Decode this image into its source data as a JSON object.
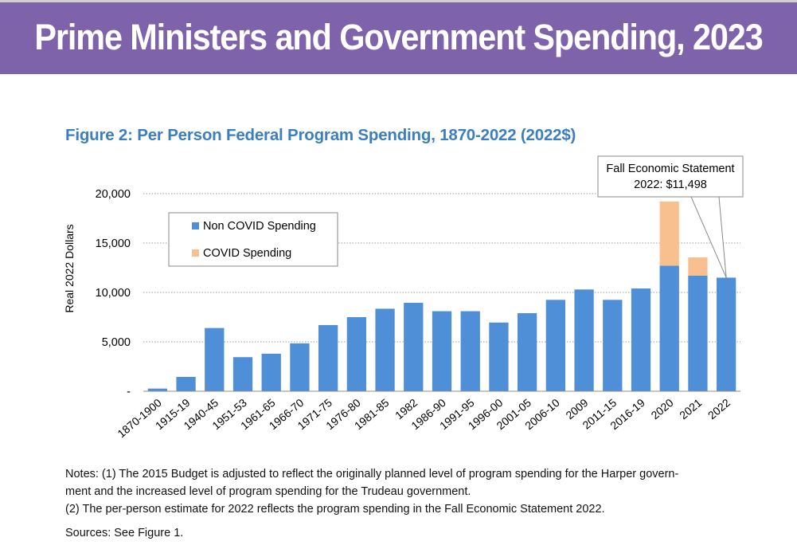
{
  "banner": {
    "title": "Prime Ministers and Government Spending, 2023"
  },
  "figure": {
    "title": "Figure 2: Per Person Federal Program Spending, 1870-2022 (2022$)"
  },
  "notes": {
    "line1": "Notes: (1) The 2015 Budget is adjusted to reflect the originally planned level of program spending for the Harper govern-",
    "line2": "ment and the increased level of program spending for the Trudeau government.",
    "line3": "(2) The per-person estimate for 2022 reflects the program spending in the Fall Economic Statement 2022.",
    "sources": "Sources: See Figure 1."
  },
  "chart_data": {
    "type": "bar",
    "stacked": true,
    "title": "Figure 2: Per Person Federal Program Spending, 1870-2022 (2022$)",
    "xlabel": "",
    "ylabel": "Real 2022 Dollars",
    "ylim": [
      0,
      20000
    ],
    "yticks": [
      0,
      5000,
      10000,
      15000,
      20000
    ],
    "ytick_labels": [
      "-",
      "5,000",
      "10,000",
      "15,000",
      "20,000"
    ],
    "grid": true,
    "legend_position": "top-left",
    "categories": [
      "1870-1900",
      "1915-19",
      "1940-45",
      "1951-53",
      "1961-65",
      "1966-70",
      "1971-75",
      "1976-80",
      "1981-85",
      "1982",
      "1986-90",
      "1991-95",
      "1996-00",
      "2001-05",
      "2006-10",
      "2009",
      "2011-15",
      "2016-19",
      "2020",
      "2021",
      "2022"
    ],
    "series": [
      {
        "name": "Non COVID Spending",
        "color": "#4f8fd8",
        "values": [
          270,
          1450,
          6400,
          3450,
          3800,
          4850,
          6700,
          7500,
          8350,
          8950,
          8100,
          8100,
          6950,
          7900,
          9250,
          10300,
          9250,
          10400,
          12700,
          11700,
          11498
        ]
      },
      {
        "name": "COVID Spending",
        "color": "#f9c08f",
        "values": [
          0,
          0,
          0,
          0,
          0,
          0,
          0,
          0,
          0,
          0,
          0,
          0,
          0,
          0,
          0,
          0,
          0,
          0,
          6500,
          1850,
          0
        ]
      }
    ],
    "annotation": {
      "line1": "Fall Economic Statement",
      "line2": "2022: $11,498",
      "target_category": "2022"
    }
  }
}
